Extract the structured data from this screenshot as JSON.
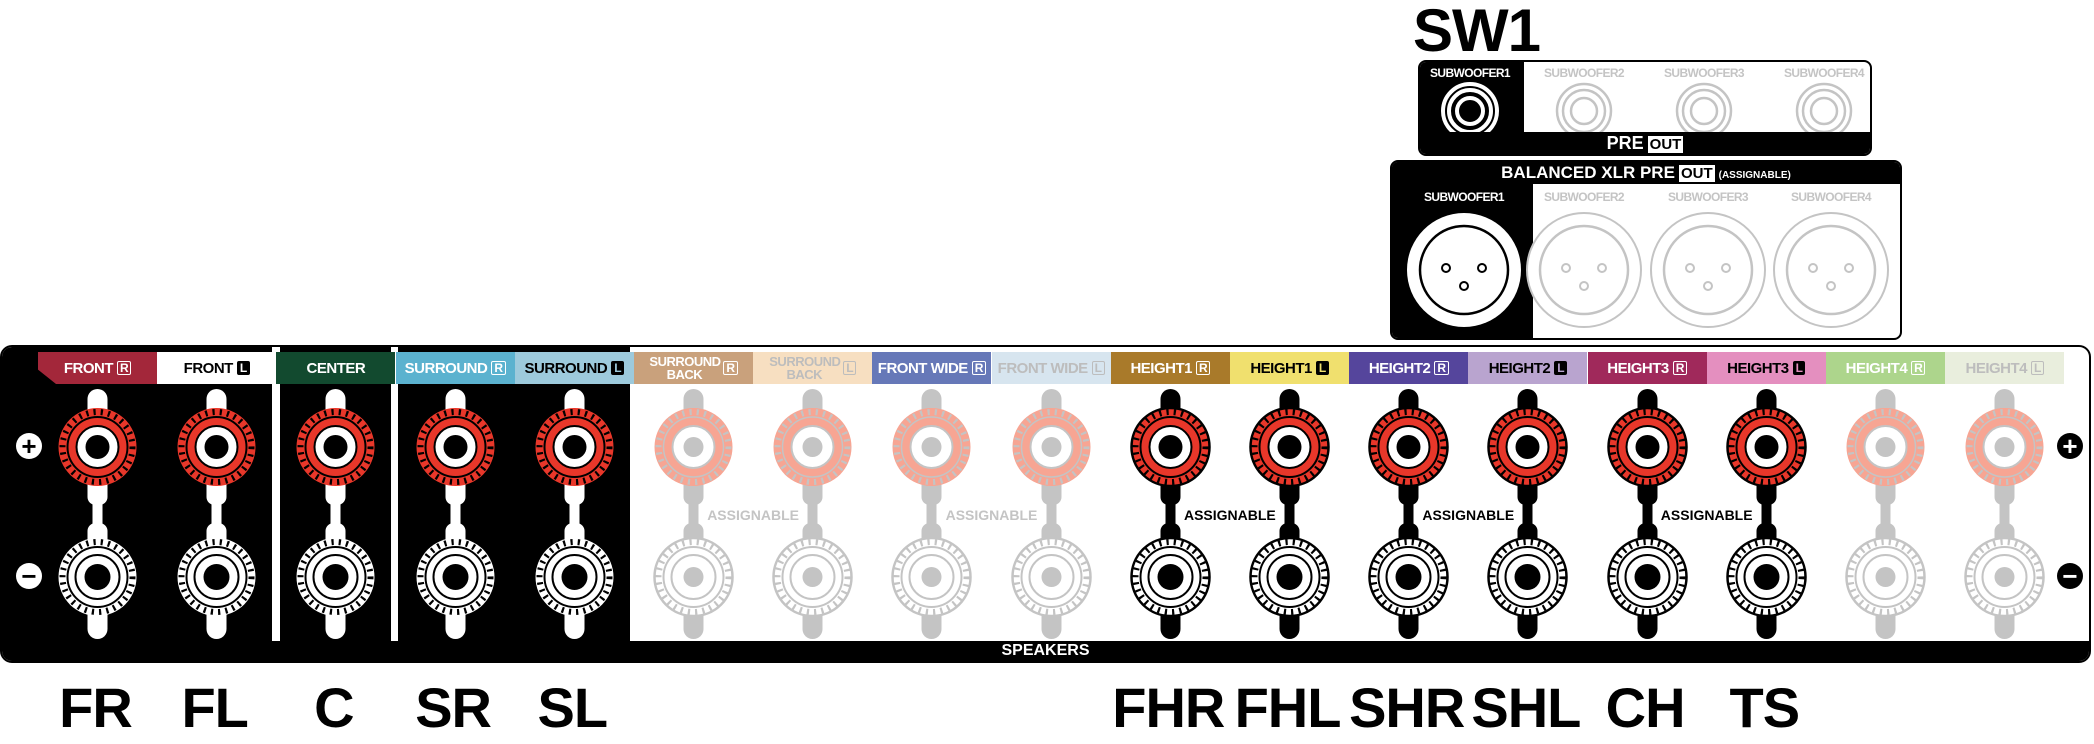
{
  "sw1_label": "SW1",
  "pre_out": {
    "title": "PRE",
    "badge": "OUT",
    "subwoofers": [
      {
        "label": "SUBWOOFER1",
        "active": true
      },
      {
        "label": "SUBWOOFER2",
        "active": false
      },
      {
        "label": "SUBWOOFER3",
        "active": false
      },
      {
        "label": "SUBWOOFER4",
        "active": false
      }
    ]
  },
  "xlr_out": {
    "title": "BALANCED XLR PRE",
    "badge": "OUT",
    "note": "(ASSIGNABLE)",
    "subwoofers": [
      {
        "label": "SUBWOOFER1",
        "active": true
      },
      {
        "label": "SUBWOOFER2",
        "active": false
      },
      {
        "label": "SUBWOOFER3",
        "active": false
      },
      {
        "label": "SUBWOOFER4",
        "active": false
      }
    ]
  },
  "speakers": {
    "bar_label": "SPEAKERS",
    "plus_symbol": "+",
    "minus_symbol": "−",
    "assignable_label": "ASSIGNABLE",
    "channels": [
      {
        "name": "FRONT",
        "side": "R",
        "bg": "#a3273a",
        "fg": "#ffffff",
        "state": "active-dark",
        "bottom": "FR"
      },
      {
        "name": "FRONT",
        "side": "L",
        "bg": "#ffffff",
        "fg": "#000000",
        "state": "active-dark",
        "bottom": "FL"
      },
      {
        "name": "CENTER",
        "side": "",
        "bg": "#124a2f",
        "fg": "#ffffff",
        "state": "active-dark",
        "bottom": "C"
      },
      {
        "name": "SURROUND",
        "side": "R",
        "bg": "#5bb2cf",
        "fg": "#ffffff",
        "state": "active-dark",
        "bottom": "SR"
      },
      {
        "name": "SURROUND",
        "side": "L",
        "bg": "#9dcadc",
        "fg": "#000000",
        "state": "active-dark",
        "bottom": "SL"
      },
      {
        "name": "SURROUND BACK",
        "side": "R",
        "bg": "#c9a17c",
        "fg": "#ffffff",
        "state": "inactive",
        "bottom": ""
      },
      {
        "name": "SURROUND BACK",
        "side": "L",
        "bg": "#f7dfc1",
        "fg": "#bdbdbd",
        "state": "inactive",
        "bottom": ""
      },
      {
        "name": "FRONT WIDE",
        "side": "R",
        "bg": "#6678b8",
        "fg": "#ffffff",
        "state": "inactive",
        "bottom": ""
      },
      {
        "name": "FRONT WIDE",
        "side": "L",
        "bg": "#d7e5ef",
        "fg": "#bdbdbd",
        "state": "inactive",
        "bottom": ""
      },
      {
        "name": "HEIGHT1",
        "side": "R",
        "bg": "#a97a2a",
        "fg": "#ffffff",
        "state": "active-light",
        "bottom": "FHR"
      },
      {
        "name": "HEIGHT1",
        "side": "L",
        "bg": "#f0e06e",
        "fg": "#000000",
        "state": "active-light",
        "bottom": "FHL"
      },
      {
        "name": "HEIGHT2",
        "side": "R",
        "bg": "#55459c",
        "fg": "#ffffff",
        "state": "active-light",
        "bottom": "SHR"
      },
      {
        "name": "HEIGHT2",
        "side": "L",
        "bg": "#b9a4cf",
        "fg": "#000000",
        "state": "active-light",
        "bottom": "SHL"
      },
      {
        "name": "HEIGHT3",
        "side": "R",
        "bg": "#a0295b",
        "fg": "#ffffff",
        "state": "active-light",
        "bottom": "CH"
      },
      {
        "name": "HEIGHT3",
        "side": "L",
        "bg": "#e48fbf",
        "fg": "#000000",
        "state": "active-light",
        "bottom": "TS"
      },
      {
        "name": "HEIGHT4",
        "side": "R",
        "bg": "#add58c",
        "fg": "#ffffff",
        "state": "inactive",
        "bottom": ""
      },
      {
        "name": "HEIGHT4",
        "side": "L",
        "bg": "#e9eedd",
        "fg": "#bdbdbd",
        "state": "inactive",
        "bottom": ""
      }
    ],
    "assignable_pairs": [
      {
        "pair": [
          5,
          6
        ],
        "active": false
      },
      {
        "pair": [
          7,
          8
        ],
        "active": false
      },
      {
        "pair": [
          9,
          10
        ],
        "active": true
      },
      {
        "pair": [
          11,
          12
        ],
        "active": true
      },
      {
        "pair": [
          13,
          14
        ],
        "active": true
      }
    ]
  },
  "colors": {
    "red_terminal": "#e8372a",
    "inactive_red": "#f7a593",
    "inactive_gray": "#c4c4c4"
  }
}
